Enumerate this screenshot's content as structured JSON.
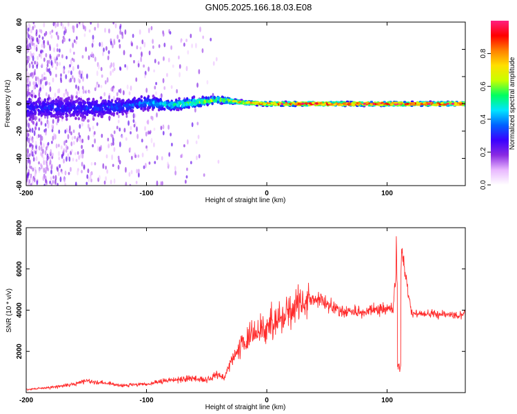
{
  "title": "GN05.2025.166.18.03.E08",
  "chart_data": [
    {
      "type": "heatmap",
      "xlabel": "Height of straight line (km)",
      "ylabel": "Frequency (Hz)",
      "xlim": [
        -200,
        165
      ],
      "ylim": [
        -60,
        60
      ],
      "xticks": [
        -200,
        -100,
        0,
        100
      ],
      "yticks": [
        60,
        40,
        20,
        0,
        -20,
        -40,
        -60
      ],
      "colorbar": {
        "label": "Normalized spectral amplitude",
        "range": [
          0.0,
          1.0
        ],
        "ticks": [
          0.0,
          0.2,
          0.4,
          0.6,
          0.8
        ],
        "colormap": [
          "#ffffff",
          "#e9b8ff",
          "#8a2be2",
          "#3a00ff",
          "#0060ff",
          "#00e5ff",
          "#00ff60",
          "#c8ff00",
          "#ffe000",
          "#ff8000",
          "#ff0000",
          "#ff2080"
        ]
      },
      "ridge": {
        "x": [
          -200,
          -180,
          -160,
          -140,
          -120,
          -100,
          -80,
          -60,
          -40,
          -20,
          0,
          20,
          40,
          60,
          80,
          100,
          120,
          140,
          165
        ],
        "center_hz": [
          -3,
          -3,
          -3,
          -3,
          -2,
          1,
          -1,
          1,
          3,
          1,
          0,
          0,
          0,
          0,
          0,
          0,
          0,
          0,
          0
        ],
        "half_width_hz": [
          14,
          12,
          11,
          10,
          8,
          7,
          5,
          5,
          3,
          2,
          2,
          2,
          2,
          2,
          2,
          2,
          2,
          2,
          2
        ],
        "amplitude": [
          0.18,
          0.2,
          0.2,
          0.22,
          0.25,
          0.3,
          0.4,
          0.48,
          0.55,
          0.7,
          0.85,
          0.95,
          0.95,
          0.95,
          0.95,
          0.95,
          0.9,
          0.95,
          0.95
        ]
      }
    },
    {
      "type": "line",
      "xlabel": "Height of straight line (km)",
      "ylabel": "SNR (10 * v/v)",
      "xlim": [
        -200,
        165
      ],
      "ylim": [
        0,
        8000
      ],
      "xticks": [
        -200,
        -100,
        0,
        100
      ],
      "yticks": [
        2000,
        4000,
        6000,
        8000
      ],
      "color": "#ff2a2a",
      "x": [
        -200,
        -180,
        -160,
        -150,
        -140,
        -120,
        -100,
        -80,
        -60,
        -50,
        -40,
        -35,
        -30,
        -20,
        -10,
        0,
        10,
        20,
        30,
        40,
        50,
        60,
        70,
        80,
        90,
        100,
        105,
        108,
        110,
        112,
        120,
        130,
        140,
        150,
        160,
        165
      ],
      "y": [
        150,
        250,
        400,
        600,
        500,
        350,
        400,
        600,
        700,
        600,
        900,
        700,
        1600,
        2300,
        2900,
        3200,
        3600,
        4100,
        4400,
        4600,
        4300,
        4000,
        3900,
        3900,
        4000,
        4100,
        4050,
        6500,
        1500,
        7000,
        3900,
        3800,
        3800,
        3800,
        3700,
        3800
      ]
    }
  ]
}
